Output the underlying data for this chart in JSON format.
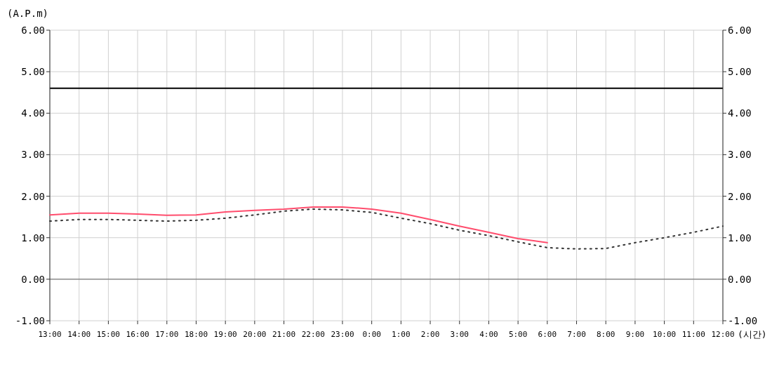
{
  "chart_data": {
    "type": "line",
    "xlabel": "(시간)",
    "ylabel": "(A.P.m)",
    "categories": [
      "13:00",
      "14:00",
      "15:00",
      "16:00",
      "17:00",
      "18:00",
      "19:00",
      "20:00",
      "21:00",
      "22:00",
      "23:00",
      "0:00",
      "1:00",
      "2:00",
      "3:00",
      "4:00",
      "5:00",
      "6:00",
      "7:00",
      "8:00",
      "9:00",
      "10:00",
      "11:00",
      "12:00"
    ],
    "series": [
      {
        "color": "#ff4d6d",
        "line_style": "solid",
        "values": [
          1.55,
          1.59,
          1.59,
          1.57,
          1.54,
          1.55,
          1.62,
          1.66,
          1.69,
          1.74,
          1.74,
          1.69,
          1.59,
          1.44,
          1.28,
          1.13,
          0.98,
          0.88,
          null,
          null,
          null,
          null,
          null,
          null
        ]
      },
      {
        "color": "#333333",
        "line_style": "dotted",
        "values": [
          1.4,
          1.44,
          1.44,
          1.42,
          1.4,
          1.42,
          1.47,
          1.55,
          1.64,
          1.69,
          1.67,
          1.61,
          1.47,
          1.34,
          1.18,
          1.05,
          0.9,
          0.76,
          0.73,
          0.74,
          0.88,
          1.0,
          1.13,
          1.28
        ]
      }
    ],
    "ylim": [
      -1,
      6
    ],
    "yticks": [
      {
        "value": -1,
        "label": "-1.00"
      },
      {
        "value": 0,
        "label": "0.00"
      },
      {
        "value": 1,
        "label": "1.00"
      },
      {
        "value": 2,
        "label": "2.00"
      },
      {
        "value": 3,
        "label": "3.00"
      },
      {
        "value": 4,
        "label": "4.00"
      },
      {
        "value": 5,
        "label": "5.00"
      },
      {
        "value": 6,
        "label": "6.00"
      }
    ],
    "y2lim": [
      -1,
      6
    ],
    "y2ticks": [
      {
        "value": -1,
        "label": "-1.00"
      },
      {
        "value": 0,
        "label": "0.00"
      },
      {
        "value": 1,
        "label": "1.00"
      },
      {
        "value": 2,
        "label": "2.00"
      },
      {
        "value": 3,
        "label": "3.00"
      },
      {
        "value": 4,
        "label": "4.00"
      },
      {
        "value": 5,
        "label": "5.00"
      },
      {
        "value": 6,
        "label": "6.00"
      }
    ],
    "ref_lines": [
      {
        "axis": "y",
        "value": 4.6,
        "color": "#000000"
      },
      {
        "axis": "y",
        "value": 0,
        "color": "#666666"
      }
    ],
    "grid": true,
    "marker": "none"
  }
}
